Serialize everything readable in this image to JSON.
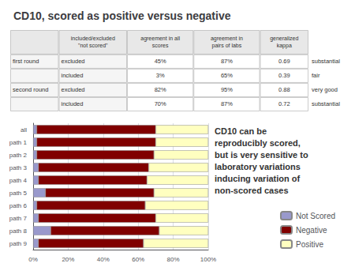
{
  "chart_data": {
    "type": "bar",
    "orientation": "horizontal",
    "stacked": true,
    "title": "CD10, scored as positive versus negative",
    "categories": [
      "all",
      "path 1",
      "path 2",
      "path 3",
      "path 4",
      "path 5",
      "path 6",
      "path 7",
      "path 8",
      "path 9"
    ],
    "series": [
      {
        "name": "Not Scored",
        "color": "#9999cc",
        "values": [
          2,
          2,
          2,
          3,
          3,
          7,
          2,
          3,
          10,
          3
        ]
      },
      {
        "name": "Negative",
        "color": "#800000",
        "values": [
          68,
          68,
          67,
          63,
          62,
          62,
          62,
          67,
          62,
          60
        ]
      },
      {
        "name": "Positive",
        "color": "#ffffc0",
        "values": [
          30,
          30,
          31,
          34,
          35,
          31,
          36,
          30,
          28,
          37
        ]
      }
    ],
    "xlim": [
      0,
      100
    ],
    "xticks": [
      {
        "value": 0,
        "label": "0%"
      },
      {
        "value": 20,
        "label": "20%"
      },
      {
        "value": 40,
        "label": "40%"
      },
      {
        "value": 60,
        "label": "60%"
      },
      {
        "value": 80,
        "label": "80%"
      },
      {
        "value": 100,
        "label": "100%"
      }
    ],
    "grid": true,
    "legend": "lower right",
    "annotations": [
      "CD10 can be\nreproducibly scored,\nbut is very sensitive to\nlaboratory variations\ninducing variation of\nnon-scored cases"
    ],
    "table": {
      "headers": [
        null,
        "included/excluded\n\"not scored\"",
        "agreement in all\nscores",
        "agreement in\npairs of labs",
        "generalized\nkappa"
      ],
      "rows": [
        [
          "first round",
          "excluded",
          "45%",
          "87%",
          "0.69"
        ],
        [
          null,
          "included",
          "3%",
          "65%",
          "0.39"
        ],
        [
          "second round",
          "excluded",
          "82%",
          "95%",
          "0.88"
        ],
        [
          null,
          "included",
          "70%",
          "87%",
          "0.72"
        ]
      ],
      "side_labels": [
        "substantial",
        "fair",
        "very good",
        "substantial"
      ]
    }
  }
}
